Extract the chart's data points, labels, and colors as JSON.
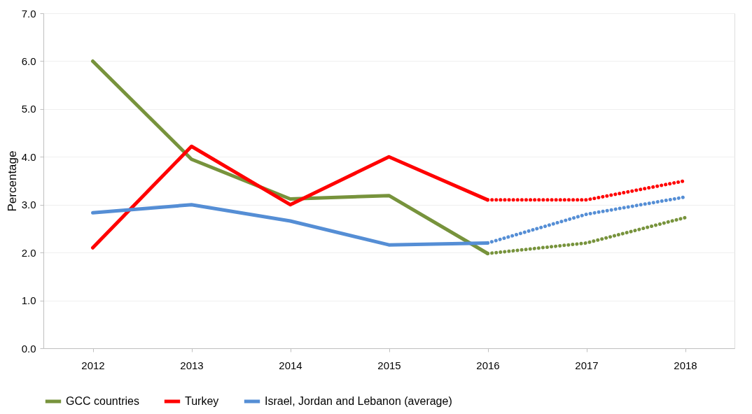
{
  "chart_data": {
    "type": "line",
    "ylabel": "Percentage",
    "categories": [
      "2012",
      "2013",
      "2014",
      "2015",
      "2016",
      "2017",
      "2018"
    ],
    "ylim": [
      0,
      7
    ],
    "yticks": [
      {
        "value": 0,
        "label": "0.0"
      },
      {
        "value": 1,
        "label": "1.0"
      },
      {
        "value": 2,
        "label": "2.0"
      },
      {
        "value": 3,
        "label": "3.0"
      },
      {
        "value": 4,
        "label": "4.0"
      },
      {
        "value": 5,
        "label": "5.0"
      },
      {
        "value": 6,
        "label": "6.0"
      },
      {
        "value": 7,
        "label": "7.0"
      }
    ],
    "grid": "y",
    "legend": "bottom",
    "marker": "none",
    "series": [
      {
        "name": "GCC countries",
        "color": "#77933c",
        "line_style": "solid",
        "values": [
          6.0,
          3.95,
          3.12,
          3.19,
          1.98,
          null,
          null
        ]
      },
      {
        "name": "Turkey",
        "color": "#ff0000",
        "line_style": "solid",
        "values": [
          2.1,
          4.22,
          3.0,
          4.0,
          3.1,
          null,
          null
        ]
      },
      {
        "name": "Israel, Jordan and Lebanon (average)",
        "color": "#558ed5",
        "line_style": "solid",
        "values": [
          2.83,
          3.0,
          2.66,
          2.16,
          2.2,
          null,
          null
        ]
      },
      {
        "color": "#77933c",
        "line_style": "dotted",
        "values": [
          null,
          null,
          null,
          null,
          1.98,
          2.2,
          2.73
        ]
      },
      {
        "color": "#ff0000",
        "line_style": "dotted",
        "values": [
          null,
          null,
          null,
          null,
          3.1,
          3.1,
          3.5
        ]
      },
      {
        "color": "#558ed5",
        "line_style": "dotted",
        "values": [
          null,
          null,
          null,
          null,
          2.2,
          2.8,
          3.16
        ]
      }
    ]
  }
}
